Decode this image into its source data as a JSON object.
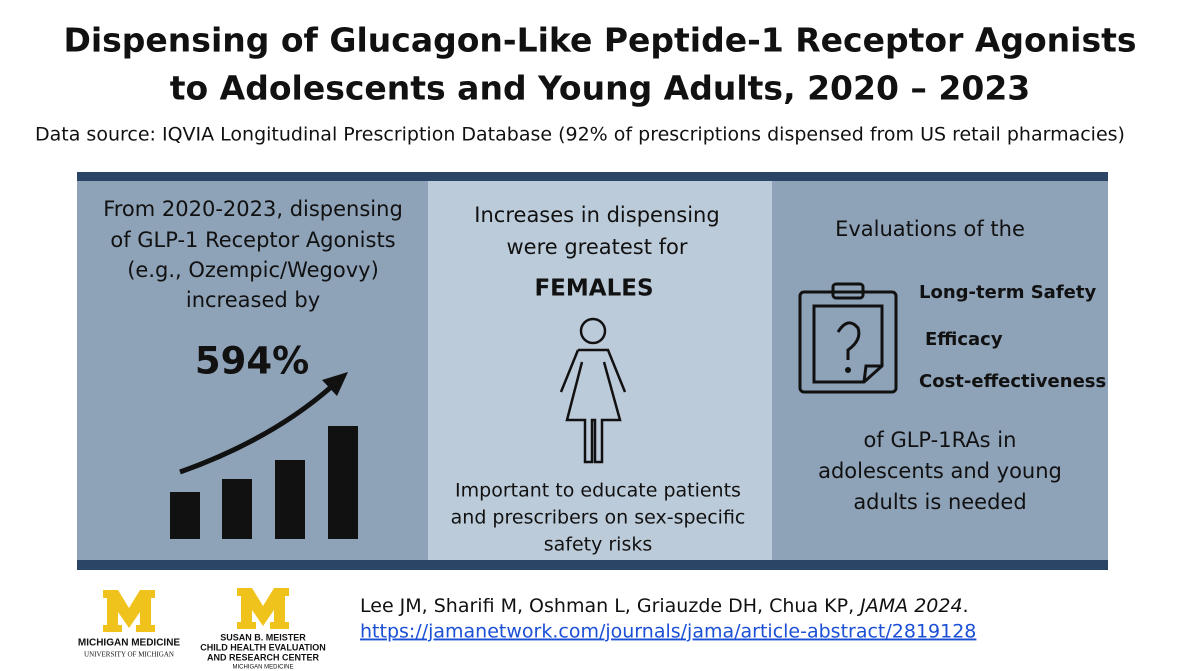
{
  "header": {
    "title_lines": [
      "Dispensing of Glucagon-Like Peptide-1 Receptor Agonists",
      "to Adolescents and Young Adults, 2020 – 2023"
    ],
    "subtitle": "Data source: IQVIA Longitudinal Prescription Database (92% of prescriptions dispensed from US retail pharmacies)"
  },
  "panels": [
    {
      "lines": [
        "From 2020-2023, dispensing",
        "of GLP-1 Receptor Agonists",
        "(e.g., Ozempic/Wegovy)",
        "increased by"
      ],
      "stat": "594%"
    },
    {
      "lines": [
        "Increases in dispensing",
        "were greatest for"
      ],
      "emphasis": "FEMALES",
      "note_lines": [
        "Important to educate patients",
        "and prescribers on sex-specific",
        "safety risks"
      ]
    },
    {
      "heading": "Evaluations of the",
      "items": [
        "Long-term Safety",
        "Efficacy",
        "Cost-effectiveness"
      ],
      "closing_lines": [
        "of GLP-1RAs in",
        "adolescents and young",
        "adults is needed"
      ]
    }
  ],
  "footer": {
    "logos": [
      {
        "lines": [
          "MICHIGAN MEDICINE",
          "UNIVERSITY OF MICHIGAN"
        ]
      },
      {
        "lines": [
          "SUSAN B. MEISTER",
          "CHILD HEALTH EVALUATION",
          "AND RESEARCH CENTER",
          "MICHIGAN MEDICINE"
        ]
      }
    ],
    "citation": {
      "authors": "Lee JM, Sharifi M, Oshman L, Griauzde DH, Chua KP, ",
      "journal": "JAMA 2024",
      "end": "."
    },
    "link": "https://jamanetwork.com/journals/jama/article-abstract/2819128"
  }
}
